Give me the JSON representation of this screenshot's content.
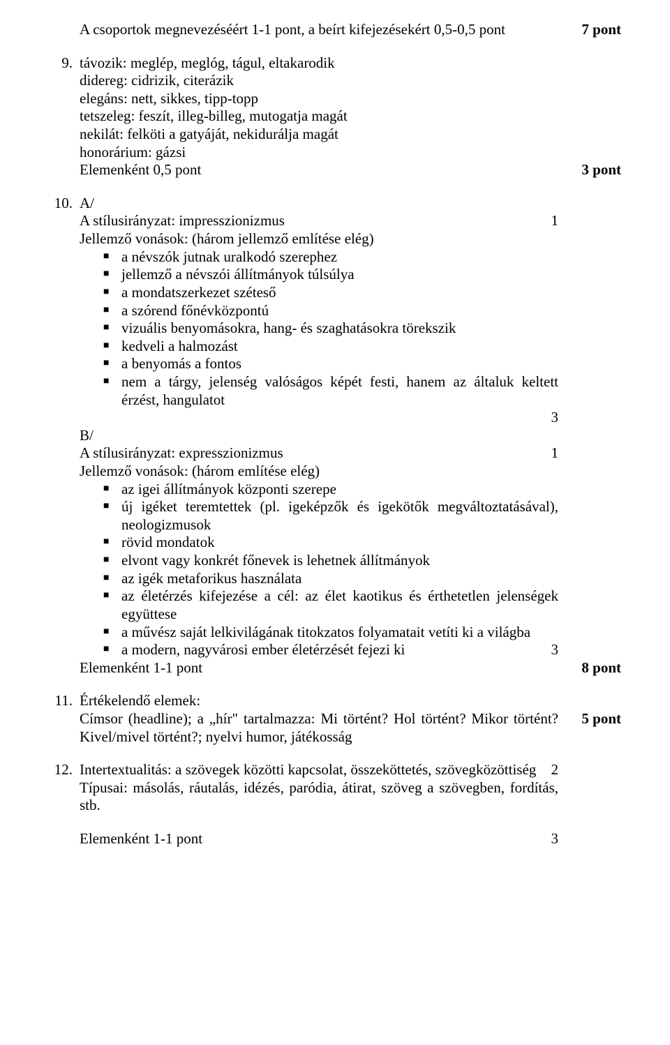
{
  "q8": {
    "text": "A csoportok megnevezéséért 1-1 pont, a beírt kifejezésekért 0,5-0,5 pont",
    "score": "7 pont"
  },
  "q9": {
    "num": "9.",
    "lines": [
      "távozik: meglép, meglóg, tágul, eltakarodik",
      "didereg: cidrizik, citerázik",
      "elegáns: nett, sikkes, tipp-topp",
      "tetszeleg: feszít, illeg-billeg, mutogatja magát",
      "nekilát: felköti a gatyáját, nekidurálja magát",
      "honorárium: gázsi"
    ],
    "tail": "Elemenként 0,5 pont",
    "score": "3 pont"
  },
  "q10": {
    "num": "10.",
    "a_label": "A/",
    "a_head": "A stílusirányzat: impresszionizmus",
    "a_head_score": "1",
    "a_sub": "Jellemző vonások: (három jellemző említése elég)",
    "a_items": [
      "a névszók jutnak uralkodó szerephez",
      "jellemző a névszói állítmányok túlsúlya",
      "a mondatszerkezet széteső",
      "a szórend főnévközpontú",
      "vizuális benyomásokra, hang- és szaghatásokra törekszik",
      "kedveli a halmozást",
      "a benyomás a fontos",
      "nem a tárgy, jelenség valóságos képét festi, hanem az általuk keltett érzést, hangulatot"
    ],
    "a_items_score": "3",
    "b_label": "B/",
    "b_head": "A stílusirányzat: expresszionizmus",
    "b_head_score": "1",
    "b_sub": "Jellemző vonások: (három említése elég)",
    "b_items": [
      "az igei állítmányok központi szerepe",
      "új igéket teremtettek (pl. igeképzők és igekötők megváltoztatásával), neologizmusok",
      "rövid mondatok",
      "elvont vagy konkrét főnevek is lehetnek állítmányok",
      "az igék metaforikus használata",
      "az életérzés kifejezése a cél: az élet kaotikus és érthetetlen jelenségek együttese",
      "a művész saját lelkivilágának titokzatos folyamatait vetíti ki a világba"
    ],
    "b_last_item": "a modern, nagyvárosi ember életérzését fejezi ki",
    "b_last_item_score": "3",
    "tail": "Elemenként 1-1 pont",
    "score": "8 pont"
  },
  "q11": {
    "num": "11.",
    "lines": [
      "Értékelendő elemek:",
      "Címsor (headline); a „hír\" tartalmazza: Mi történt? Hol történt? Mikor történt? Kivel/mivel történt?; nyelvi humor, játékosság"
    ],
    "score": "5 pont"
  },
  "q12": {
    "num": "12.",
    "line1": "Intertextualitás: a szövegek közötti kapcsolat, összeköttetés, szövegközöttiség",
    "line1_score": "2",
    "line2": "Típusai: másolás, ráutalás, idézés, paródia, átirat, szöveg a szövegben, fordítás, stb.",
    "tail": "Elemenként 1-1 pont",
    "tail_score": "3"
  }
}
